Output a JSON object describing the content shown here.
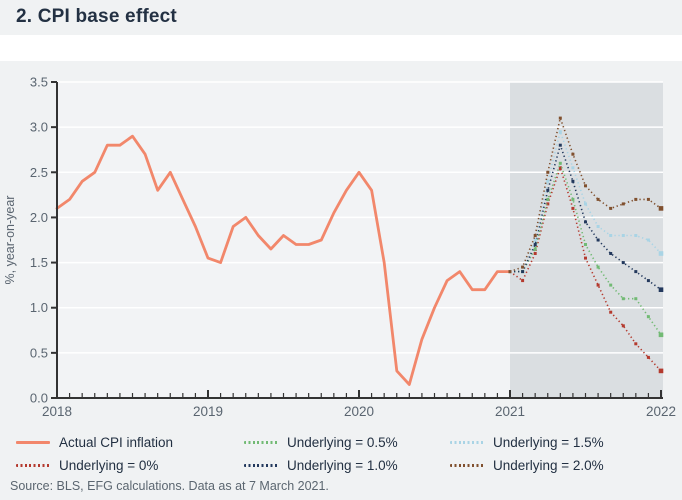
{
  "header": {
    "title": "2. CPI base effect"
  },
  "source": {
    "text": "Source: BLS, EFG calculations. Data as at 7 March 2021."
  },
  "colors": {
    "page_bg": "#f0f2f3",
    "plot_bg": "#f2f3f5",
    "forecast_bg": "#dadee1",
    "gridline": "#ffffff",
    "axis": "#333333",
    "tick_label": "#5a6570",
    "title_text": "#233143",
    "actual": "#f2876b",
    "underlying_0": "#b43a2e",
    "underlying_05": "#72ba74",
    "underlying_10": "#23395d",
    "underlying_15": "#a9d4e5",
    "underlying_20": "#80502e"
  },
  "legend": {
    "items": [
      {
        "label": "Actual CPI inflation",
        "color": "#f2876b",
        "style": "solid",
        "col": 0
      },
      {
        "label": "Underlying = 0%",
        "color": "#b43a2e",
        "style": "dotted",
        "col": 0
      },
      {
        "label": "Underlying = 0.5%",
        "color": "#72ba74",
        "style": "dotted",
        "col": 1
      },
      {
        "label": "Underlying = 1.0%",
        "color": "#23395d",
        "style": "dotted",
        "col": 1
      },
      {
        "label": "Underlying = 1.5%",
        "color": "#a9d4e5",
        "style": "dotted",
        "col": 2
      },
      {
        "label": "Underlying = 2.0%",
        "color": "#80502e",
        "style": "dotted",
        "col": 2
      }
    ]
  },
  "chart_data": {
    "type": "line",
    "title": "2. CPI base effect",
    "xlabel": "",
    "ylabel": "%, year-on-year",
    "ylim": [
      0,
      3.5
    ],
    "xlim_years": [
      2018,
      2022
    ],
    "grid": "horizontal-white",
    "y_ticks": [
      "0.0",
      "0.5",
      "1.0",
      "1.5",
      "2.0",
      "2.5",
      "3.0",
      "3.5"
    ],
    "x_ticks": [
      "2018",
      "2019",
      "2020",
      "2021",
      "2022"
    ],
    "x_minor_tick_unit": "month",
    "forecast_region": {
      "start_year": 2021,
      "end_year": 2022.02
    },
    "x_unit": "months since Jan 2018, monthly data",
    "series": [
      {
        "name": "Actual CPI inflation",
        "color": "#f2876b",
        "style": "solid",
        "start_month": 0,
        "values": [
          2.1,
          2.2,
          2.4,
          2.5,
          2.8,
          2.8,
          2.9,
          2.7,
          2.3,
          2.5,
          2.2,
          1.9,
          1.55,
          1.5,
          1.9,
          2.0,
          1.8,
          1.65,
          1.8,
          1.7,
          1.7,
          1.75,
          2.05,
          2.3,
          2.5,
          2.3,
          1.5,
          0.3,
          0.15,
          0.65,
          1.0,
          1.3,
          1.4,
          1.2,
          1.2,
          1.4,
          1.4
        ]
      },
      {
        "name": "Underlying = 0%",
        "color": "#b43a2e",
        "style": "dotted",
        "start_month": 36,
        "values": [
          1.4,
          1.3,
          1.6,
          2.15,
          2.55,
          2.1,
          1.55,
          1.25,
          0.95,
          0.8,
          0.6,
          0.45,
          0.3
        ]
      },
      {
        "name": "Underlying = 0.5%",
        "color": "#72ba74",
        "style": "dotted",
        "start_month": 36,
        "values": [
          1.4,
          1.4,
          1.65,
          2.2,
          2.6,
          2.2,
          1.7,
          1.45,
          1.25,
          1.1,
          1.1,
          0.9,
          0.7
        ]
      },
      {
        "name": "Underlying = 1.0%",
        "color": "#23395d",
        "style": "dotted",
        "start_month": 36,
        "values": [
          1.4,
          1.4,
          1.7,
          2.3,
          2.8,
          2.4,
          1.95,
          1.75,
          1.6,
          1.5,
          1.4,
          1.3,
          1.2
        ]
      },
      {
        "name": "Underlying = 1.5%",
        "color": "#a9d4e5",
        "style": "dotted",
        "start_month": 36,
        "values": [
          1.4,
          1.45,
          1.75,
          2.4,
          2.95,
          2.55,
          2.15,
          1.9,
          1.8,
          1.8,
          1.8,
          1.75,
          1.6
        ]
      },
      {
        "name": "Underlying = 2.0%",
        "color": "#80502e",
        "style": "dotted",
        "start_month": 36,
        "values": [
          1.4,
          1.45,
          1.8,
          2.5,
          3.1,
          2.7,
          2.35,
          2.2,
          2.1,
          2.15,
          2.2,
          2.2,
          2.1
        ]
      }
    ]
  }
}
